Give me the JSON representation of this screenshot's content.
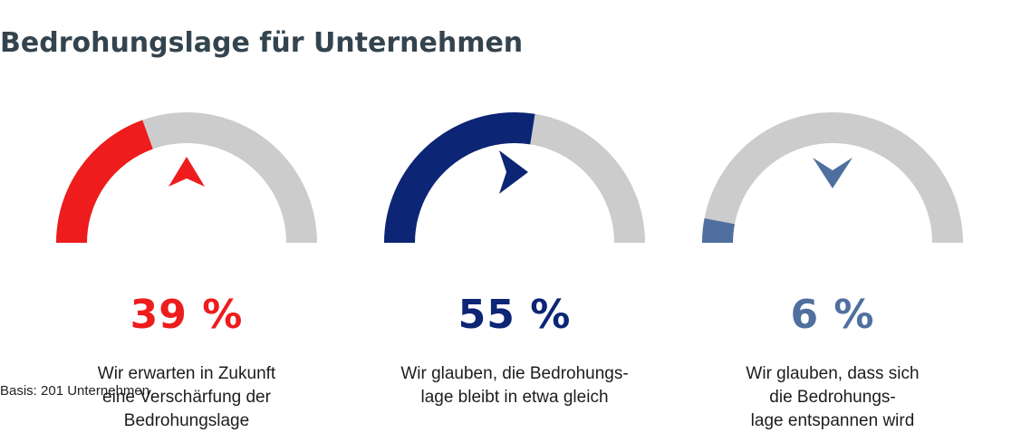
{
  "title": "Bedrohungslage für Unternehmen",
  "basis": "Basis: 201 Unternehmen",
  "chart_data": {
    "type": "gauge",
    "unit": "%",
    "track_color": "#cccccc",
    "items": [
      {
        "value": 39,
        "label": "39 %",
        "color": "#ee1c1c",
        "arrow": "up",
        "caption": [
          "Wir erwarten in Zukunft",
          "eine Verschärfung der",
          "Bedrohungslage"
        ]
      },
      {
        "value": 55,
        "label": "55 %",
        "color": "#0c2575",
        "arrow": "right",
        "caption": [
          "Wir glauben, die Bedrohungs-",
          "lage bleibt in etwa gleich"
        ]
      },
      {
        "value": 6,
        "label": "6 %",
        "color": "#4f6f9f",
        "arrow": "down",
        "caption": [
          "Wir glauben, dass sich",
          "die Bedrohungs-",
          "lage entspannen wird"
        ]
      }
    ]
  }
}
